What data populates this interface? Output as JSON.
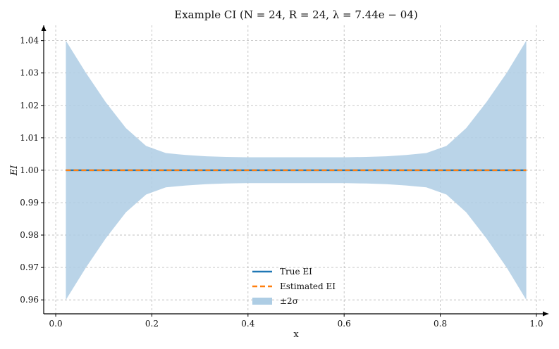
{
  "chart_data": {
    "type": "line",
    "title": "Example CI (N = 24, R = 24, λ = 7.44e − 04)",
    "xlabel": "x",
    "ylabel": "EI",
    "xlim": [
      -0.025,
      1.025
    ],
    "ylim": [
      0.9557,
      1.0447
    ],
    "xticks": [
      0.0,
      0.2,
      0.4,
      0.6,
      0.8,
      1.0
    ],
    "xtick_labels": [
      "0.0",
      "0.2",
      "0.4",
      "0.6",
      "0.8",
      "1.0"
    ],
    "yticks": [
      0.96,
      0.97,
      0.98,
      0.99,
      1.0,
      1.01,
      1.02,
      1.03,
      1.04
    ],
    "ytick_labels": [
      "0.96",
      "0.97",
      "0.98",
      "0.99",
      "1.00",
      "1.01",
      "1.02",
      "1.03",
      "1.04"
    ],
    "grid": true,
    "legend_position": "bottom-center",
    "x": [
      0.021,
      0.063,
      0.104,
      0.146,
      0.188,
      0.229,
      0.271,
      0.313,
      0.354,
      0.396,
      0.438,
      0.479,
      0.521,
      0.563,
      0.604,
      0.646,
      0.688,
      0.729,
      0.771,
      0.813,
      0.854,
      0.896,
      0.938,
      0.979
    ],
    "series": [
      {
        "name": "True EI",
        "style": "solid",
        "color": "#1f77b4",
        "values": [
          1.0,
          1.0,
          1.0,
          1.0,
          1.0,
          1.0,
          1.0,
          1.0,
          1.0,
          1.0,
          1.0,
          1.0,
          1.0,
          1.0,
          1.0,
          1.0,
          1.0,
          1.0,
          1.0,
          1.0,
          1.0,
          1.0,
          1.0,
          1.0
        ]
      },
      {
        "name": "Estimated EI",
        "style": "dashed",
        "color": "#ff7f0e",
        "values": [
          1.0,
          1.0,
          1.0,
          1.0,
          1.0,
          1.0,
          1.0,
          1.0,
          1.0,
          1.0,
          1.0,
          1.0,
          1.0,
          1.0,
          1.0,
          1.0,
          1.0,
          1.0,
          1.0,
          1.0,
          1.0,
          1.0,
          1.0,
          1.0
        ]
      }
    ],
    "band": {
      "name": "±2σ",
      "color": "#aecde4",
      "upper": [
        1.04,
        1.03,
        1.021,
        1.013,
        1.0075,
        1.0053,
        1.0047,
        1.0043,
        1.0041,
        1.004,
        1.004,
        1.004,
        1.004,
        1.004,
        1.004,
        1.0041,
        1.0043,
        1.0047,
        1.0053,
        1.0075,
        1.013,
        1.021,
        1.03,
        1.04
      ],
      "lower": [
        0.96,
        0.97,
        0.979,
        0.987,
        0.9925,
        0.9947,
        0.9953,
        0.9957,
        0.9959,
        0.996,
        0.996,
        0.996,
        0.996,
        0.996,
        0.996,
        0.9959,
        0.9957,
        0.9953,
        0.9947,
        0.9925,
        0.987,
        0.979,
        0.97,
        0.96
      ]
    },
    "legend": [
      {
        "label": "True EI",
        "kind": "solid",
        "color": "#1f77b4"
      },
      {
        "label": "Estimated EI",
        "kind": "dashed",
        "color": "#ff7f0e"
      },
      {
        "label": "±2σ",
        "kind": "band",
        "color": "#aecde4"
      }
    ]
  }
}
